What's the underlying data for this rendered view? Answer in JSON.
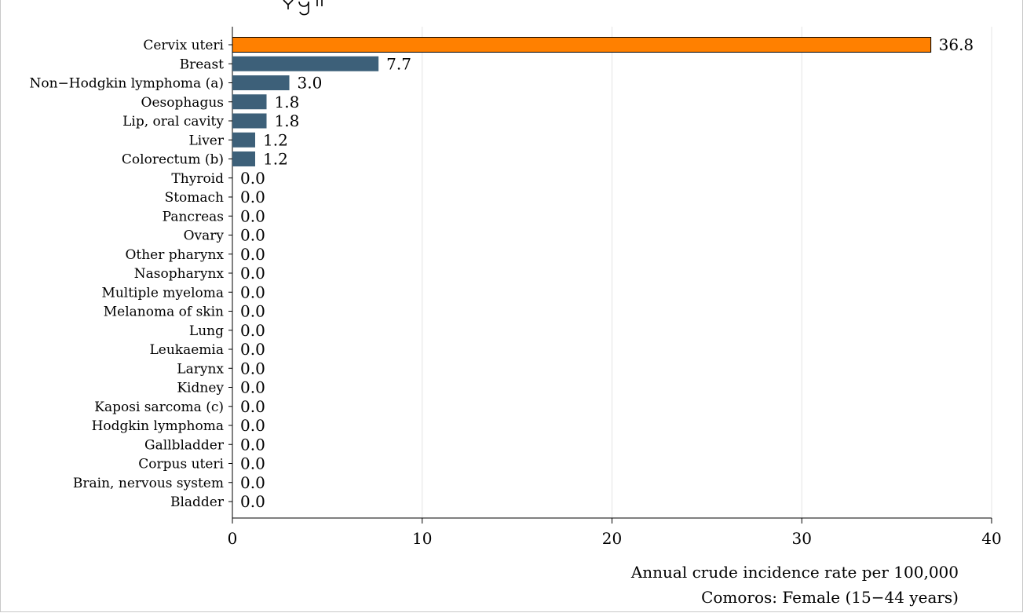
{
  "chart_data": {
    "type": "bar",
    "orientation": "horizontal",
    "categories": [
      "Cervix uteri",
      "Breast",
      "Non−Hodgkin lymphoma (a)",
      "Oesophagus",
      "Lip, oral cavity",
      "Liver",
      "Colorectum (b)",
      "Thyroid",
      "Stomach",
      "Pancreas",
      "Ovary",
      "Other pharynx",
      "Nasopharynx",
      "Multiple myeloma",
      "Melanoma of skin",
      "Lung",
      "Leukaemia",
      "Larynx",
      "Kidney",
      "Kaposi sarcoma (c)",
      "Hodgkin lymphoma",
      "Gallbladder",
      "Corpus uteri",
      "Brain, nervous system",
      "Bladder"
    ],
    "values": [
      36.8,
      7.7,
      3.0,
      1.8,
      1.8,
      1.2,
      1.2,
      0.0,
      0.0,
      0.0,
      0.0,
      0.0,
      0.0,
      0.0,
      0.0,
      0.0,
      0.0,
      0.0,
      0.0,
      0.0,
      0.0,
      0.0,
      0.0,
      0.0,
      0.0
    ],
    "value_labels": [
      "36.8",
      "7.7",
      "3.0",
      "1.8",
      "1.8",
      "1.2",
      "1.2",
      "0.0",
      "0.0",
      "0.0",
      "0.0",
      "0.0",
      "0.0",
      "0.0",
      "0.0",
      "0.0",
      "0.0",
      "0.0",
      "0.0",
      "0.0",
      "0.0",
      "0.0",
      "0.0",
      "0.0",
      "0.0"
    ],
    "highlight_index": 0,
    "xlim": [
      0,
      40
    ],
    "xticks": [
      0,
      10,
      20,
      30,
      40
    ],
    "xlabel": "Annual crude incidence rate per 100,000",
    "subtitle": "Comoros: Female (15−44 years)",
    "grid": true
  },
  "colors": {
    "highlight": "#ff8000",
    "bar": "#3d6079",
    "bar_edge": "#000000",
    "grid": "#e4e4e4",
    "axis": "#000000"
  }
}
